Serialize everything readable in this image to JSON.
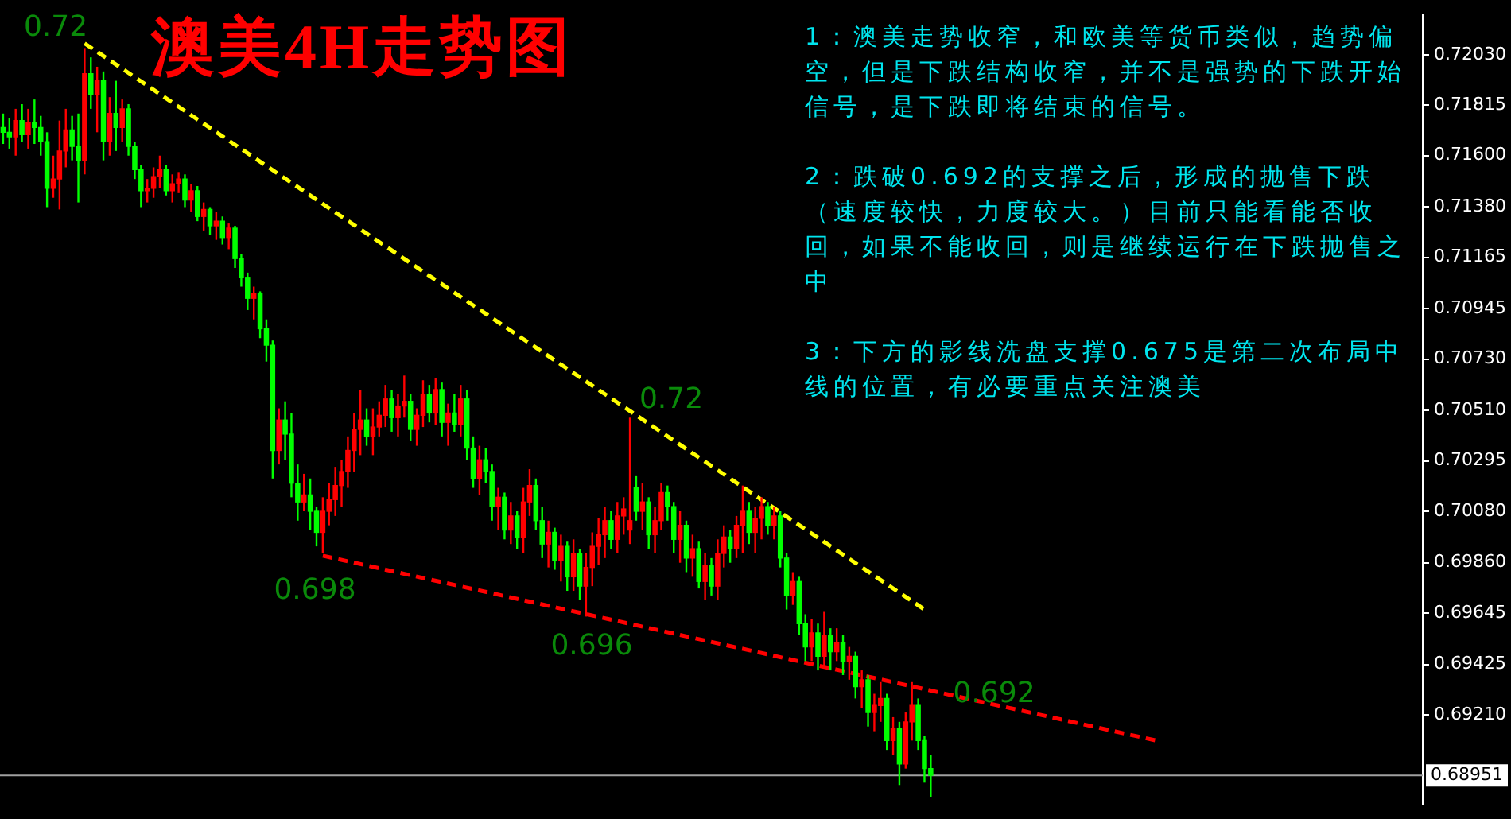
{
  "chart_data": {
    "type": "candlestick",
    "title": "澳美4H走势图",
    "categories": [
      null,
      null,
      null,
      null,
      null,
      null,
      null,
      null,
      null,
      null,
      null,
      null,
      null,
      null,
      null,
      null,
      null,
      null,
      null,
      null,
      null,
      null,
      null,
      null,
      null,
      null,
      null,
      null,
      null,
      null,
      null,
      null,
      null,
      null,
      null,
      null,
      null,
      null,
      null,
      null,
      null,
      null,
      null,
      null,
      null,
      null,
      null,
      null,
      null,
      null,
      null,
      null,
      null,
      null,
      null,
      null,
      null,
      null,
      null,
      null,
      null,
      null,
      null,
      null,
      null,
      null,
      null,
      null,
      null,
      null,
      null,
      null,
      null,
      null,
      null,
      null,
      null,
      null,
      null,
      null,
      null,
      null,
      null,
      null,
      null,
      null,
      null,
      null,
      null,
      null,
      null,
      null,
      null,
      null,
      null,
      null,
      null,
      null,
      null,
      null,
      null,
      null,
      null,
      null,
      null,
      null,
      null,
      null,
      null,
      null,
      null,
      null,
      null,
      null,
      null,
      null,
      null,
      null,
      null,
      null,
      null,
      null,
      null,
      null,
      null,
      null,
      null,
      null,
      null,
      null,
      null,
      null,
      null,
      null,
      null,
      null,
      null,
      null,
      null,
      null,
      null,
      null,
      null,
      null,
      null,
      null,
      null,
      null,
      null,
      null,
      null,
      null,
      null,
      null,
      null,
      null,
      null,
      null,
      null,
      null,
      null,
      null,
      null,
      null,
      null,
      null,
      null,
      null,
      null,
      null,
      null,
      null,
      null,
      null,
      null,
      null,
      null,
      null,
      null,
      null,
      null,
      null,
      null,
      null,
      null,
      null,
      null,
      null,
      null,
      null,
      null,
      null,
      null,
      null,
      null,
      null,
      null,
      null,
      null,
      null,
      null,
      null,
      null,
      null,
      null,
      null,
      null,
      null,
      null,
      null,
      null,
      null,
      null,
      null,
      null,
      null,
      null,
      null,
      null,
      null,
      null,
      null,
      null,
      null,
      null,
      null,
      null
    ],
    "ohlc": [
      [
        0.7172,
        0.7178,
        0.7165,
        0.717
      ],
      [
        0.717,
        0.7176,
        0.7163,
        0.7168
      ],
      [
        0.7168,
        0.718,
        0.716,
        0.7175
      ],
      [
        0.7175,
        0.7182,
        0.7166,
        0.7169
      ],
      [
        0.7169,
        0.718,
        0.7163,
        0.7174
      ],
      [
        0.7174,
        0.7184,
        0.7165,
        0.7172
      ],
      [
        0.7172,
        0.7177,
        0.716,
        0.7166
      ],
      [
        0.7166,
        0.717,
        0.7138,
        0.7146
      ],
      [
        0.7146,
        0.716,
        0.7142,
        0.715
      ],
      [
        0.715,
        0.7175,
        0.7137,
        0.7162
      ],
      [
        0.7162,
        0.718,
        0.7155,
        0.7171
      ],
      [
        0.7171,
        0.7177,
        0.7158,
        0.7164
      ],
      [
        0.7164,
        0.7178,
        0.714,
        0.7158
      ],
      [
        0.7158,
        0.7206,
        0.7152,
        0.7195
      ],
      [
        0.7195,
        0.7202,
        0.718,
        0.7186
      ],
      [
        0.7186,
        0.7198,
        0.717,
        0.7192
      ],
      [
        0.7192,
        0.7196,
        0.7158,
        0.7166
      ],
      [
        0.7166,
        0.7185,
        0.716,
        0.7178
      ],
      [
        0.7178,
        0.7192,
        0.7162,
        0.7172
      ],
      [
        0.7172,
        0.7184,
        0.7166,
        0.718
      ],
      [
        0.718,
        0.7182,
        0.716,
        0.7164
      ],
      [
        0.7164,
        0.7166,
        0.715,
        0.7154
      ],
      [
        0.7154,
        0.7156,
        0.7138,
        0.7145
      ],
      [
        0.7145,
        0.715,
        0.714,
        0.7146
      ],
      [
        0.7146,
        0.7155,
        0.7142,
        0.7151
      ],
      [
        0.7151,
        0.716,
        0.7146,
        0.7154
      ],
      [
        0.7154,
        0.7156,
        0.7143,
        0.7145
      ],
      [
        0.7145,
        0.7152,
        0.714,
        0.7148
      ],
      [
        0.7148,
        0.7153,
        0.7144,
        0.715
      ],
      [
        0.715,
        0.7152,
        0.7138,
        0.7141
      ],
      [
        0.7141,
        0.7148,
        0.7136,
        0.7145
      ],
      [
        0.7145,
        0.7147,
        0.7132,
        0.7134
      ],
      [
        0.7134,
        0.714,
        0.7128,
        0.7137
      ],
      [
        0.7137,
        0.7138,
        0.7126,
        0.713
      ],
      [
        0.713,
        0.7136,
        0.7124,
        0.7132
      ],
      [
        0.7132,
        0.7134,
        0.7122,
        0.7125
      ],
      [
        0.7125,
        0.7131,
        0.712,
        0.7129
      ],
      [
        0.7129,
        0.713,
        0.7112,
        0.7116
      ],
      [
        0.7116,
        0.7118,
        0.7104,
        0.7108
      ],
      [
        0.7108,
        0.711,
        0.7094,
        0.7099
      ],
      [
        0.7099,
        0.7104,
        0.709,
        0.7101
      ],
      [
        0.7101,
        0.7102,
        0.7082,
        0.7086
      ],
      [
        0.7086,
        0.709,
        0.7072,
        0.7079
      ],
      [
        0.7079,
        0.7081,
        0.7022,
        0.7034
      ],
      [
        0.7034,
        0.7052,
        0.7028,
        0.7047
      ],
      [
        0.7047,
        0.7055,
        0.703,
        0.7041
      ],
      [
        0.7041,
        0.705,
        0.7014,
        0.702
      ],
      [
        0.702,
        0.7028,
        0.7004,
        0.7012
      ],
      [
        0.7012,
        0.7024,
        0.7008,
        0.7015
      ],
      [
        0.7015,
        0.7022,
        0.7,
        0.7008
      ],
      [
        0.7008,
        0.701,
        0.6993,
        0.6999
      ],
      [
        0.6999,
        0.7014,
        0.699,
        0.7008
      ],
      [
        0.7008,
        0.702,
        0.7002,
        0.7013
      ],
      [
        0.7013,
        0.7027,
        0.7006,
        0.7019
      ],
      [
        0.7019,
        0.703,
        0.701,
        0.7025
      ],
      [
        0.7025,
        0.704,
        0.7018,
        0.7034
      ],
      [
        0.7034,
        0.705,
        0.7025,
        0.7043
      ],
      [
        0.7043,
        0.706,
        0.7032,
        0.7047
      ],
      [
        0.7047,
        0.7052,
        0.7036,
        0.704
      ],
      [
        0.704,
        0.7052,
        0.7032,
        0.7044
      ],
      [
        0.7044,
        0.7055,
        0.704,
        0.7049
      ],
      [
        0.7049,
        0.7062,
        0.7044,
        0.7056
      ],
      [
        0.7056,
        0.706,
        0.7042,
        0.7048
      ],
      [
        0.7048,
        0.7058,
        0.704,
        0.7053
      ],
      [
        0.7053,
        0.7066,
        0.7048,
        0.7055
      ],
      [
        0.7055,
        0.7058,
        0.7038,
        0.7043
      ],
      [
        0.7043,
        0.7052,
        0.7036,
        0.7049
      ],
      [
        0.7049,
        0.7064,
        0.7044,
        0.7058
      ],
      [
        0.7058,
        0.7062,
        0.7046,
        0.705
      ],
      [
        0.705,
        0.7065,
        0.7045,
        0.706
      ],
      [
        0.706,
        0.7063,
        0.704,
        0.7046
      ],
      [
        0.7046,
        0.7054,
        0.7036,
        0.705
      ],
      [
        0.705,
        0.7058,
        0.7042,
        0.7045
      ],
      [
        0.7045,
        0.7062,
        0.704,
        0.7056
      ],
      [
        0.7056,
        0.706,
        0.703,
        0.7035
      ],
      [
        0.7035,
        0.704,
        0.7018,
        0.7022
      ],
      [
        0.7022,
        0.7036,
        0.7015,
        0.703
      ],
      [
        0.703,
        0.7035,
        0.702,
        0.7025
      ],
      [
        0.7025,
        0.7028,
        0.7004,
        0.701
      ],
      [
        0.701,
        0.7018,
        0.7,
        0.7014
      ],
      [
        0.7014,
        0.7016,
        0.6996,
        0.7
      ],
      [
        0.7,
        0.7012,
        0.6994,
        0.7006
      ],
      [
        0.7006,
        0.7008,
        0.6992,
        0.6997
      ],
      [
        0.6997,
        0.7018,
        0.699,
        0.7012
      ],
      [
        0.7012,
        0.7026,
        0.7006,
        0.7019
      ],
      [
        0.7019,
        0.7022,
        0.7,
        0.7004
      ],
      [
        0.7004,
        0.701,
        0.6988,
        0.6994
      ],
      [
        0.6994,
        0.7004,
        0.6984,
        0.6999
      ],
      [
        0.6999,
        0.7001,
        0.6983,
        0.6987
      ],
      [
        0.6987,
        0.6998,
        0.6978,
        0.6993
      ],
      [
        0.6993,
        0.6995,
        0.6974,
        0.698
      ],
      [
        0.698,
        0.6996,
        0.6974,
        0.699
      ],
      [
        0.699,
        0.6992,
        0.697,
        0.6976
      ],
      [
        0.6976,
        0.699,
        0.6963,
        0.6984
      ],
      [
        0.6984,
        0.6999,
        0.6976,
        0.6993
      ],
      [
        0.6993,
        0.7005,
        0.6985,
        0.6998
      ],
      [
        0.6998,
        0.701,
        0.6988,
        0.7004
      ],
      [
        0.7004,
        0.7008,
        0.6992,
        0.6996
      ],
      [
        0.6996,
        0.7012,
        0.699,
        0.7006
      ],
      [
        0.7006,
        0.7014,
        0.6998,
        0.7009
      ],
      [
        0.7,
        0.7048,
        0.6994,
        0.7004
      ],
      [
        0.7018,
        0.7023,
        0.7004,
        0.7008
      ],
      [
        0.7008,
        0.702,
        0.7,
        0.7012
      ],
      [
        0.7012,
        0.7014,
        0.6992,
        0.6998
      ],
      [
        0.6998,
        0.701,
        0.699,
        0.7004
      ],
      [
        0.7004,
        0.702,
        0.7,
        0.7016
      ],
      [
        0.7016,
        0.7019,
        0.7004,
        0.701
      ],
      [
        0.701,
        0.7012,
        0.699,
        0.6996
      ],
      [
        0.6996,
        0.7008,
        0.6986,
        0.7002
      ],
      [
        0.7002,
        0.7004,
        0.6982,
        0.6988
      ],
      [
        0.6988,
        0.6998,
        0.698,
        0.6992
      ],
      [
        0.6992,
        0.6995,
        0.6975,
        0.6978
      ],
      [
        0.6978,
        0.699,
        0.697,
        0.6985
      ],
      [
        0.6985,
        0.6988,
        0.6972,
        0.6976
      ],
      [
        0.6976,
        0.6996,
        0.697,
        0.699
      ],
      [
        0.699,
        0.7002,
        0.6984,
        0.6997
      ],
      [
        0.6997,
        0.7,
        0.6986,
        0.6992
      ],
      [
        0.6992,
        0.7006,
        0.6988,
        0.7002
      ],
      [
        0.7002,
        0.7019,
        0.699,
        0.7008
      ],
      [
        0.7008,
        0.7012,
        0.6994,
        0.6999
      ],
      [
        0.6999,
        0.701,
        0.699,
        0.7005
      ],
      [
        0.7005,
        0.7014,
        0.6996,
        0.701
      ],
      [
        0.701,
        0.7012,
        0.6998,
        0.7002
      ],
      [
        0.7002,
        0.701,
        0.6996,
        0.7006
      ],
      [
        0.7006,
        0.7008,
        0.6984,
        0.6988
      ],
      [
        0.6988,
        0.699,
        0.6966,
        0.6972
      ],
      [
        0.6972,
        0.6982,
        0.6968,
        0.6978
      ],
      [
        0.6978,
        0.698,
        0.6955,
        0.696
      ],
      [
        0.696,
        0.6964,
        0.6944,
        0.695
      ],
      [
        0.695,
        0.6962,
        0.6944,
        0.6956
      ],
      [
        0.6956,
        0.696,
        0.694,
        0.6946
      ],
      [
        0.6946,
        0.6965,
        0.6942,
        0.6955
      ],
      [
        0.6955,
        0.6958,
        0.694,
        0.6948
      ],
      [
        0.6948,
        0.6958,
        0.6944,
        0.6952
      ],
      [
        0.6952,
        0.6955,
        0.6938,
        0.6944
      ],
      [
        0.6944,
        0.695,
        0.6936,
        0.6946
      ],
      [
        0.6946,
        0.6948,
        0.6928,
        0.6933
      ],
      [
        0.6933,
        0.694,
        0.6924,
        0.6936
      ],
      [
        0.6936,
        0.6938,
        0.6916,
        0.6922
      ],
      [
        0.6922,
        0.693,
        0.6914,
        0.6925
      ],
      [
        0.6925,
        0.6935,
        0.6918,
        0.6928
      ],
      [
        0.6928,
        0.693,
        0.6906,
        0.691
      ],
      [
        0.691,
        0.692,
        0.6904,
        0.6915
      ],
      [
        0.6915,
        0.6918,
        0.6891,
        0.69
      ],
      [
        0.69,
        0.6922,
        0.6898,
        0.6918
      ],
      [
        0.6918,
        0.6935,
        0.691,
        0.6925
      ],
      [
        0.6925,
        0.6928,
        0.6906,
        0.691
      ],
      [
        0.691,
        0.6912,
        0.6892,
        0.6898
      ],
      [
        0.6898,
        0.6904,
        0.6886,
        0.68951
      ],
      null,
      null,
      null,
      null,
      null,
      null,
      null,
      null,
      null,
      null,
      null,
      null,
      null,
      null,
      null,
      null,
      null,
      null,
      null,
      null,
      null,
      null,
      null,
      null,
      null,
      null,
      null,
      null,
      null,
      null,
      null,
      null,
      null,
      null,
      null,
      null,
      null,
      null,
      null,
      null,
      null,
      null,
      null,
      null,
      null,
      null,
      null,
      null,
      null,
      null,
      null,
      null,
      null,
      null,
      null,
      null,
      null,
      null,
      null,
      null,
      null,
      null,
      null,
      null,
      null,
      null,
      null,
      null,
      null,
      null,
      null,
      null,
      null,
      null,
      null,
      null,
      null,
      null
    ],
    "colors": [
      "#00ff00",
      "#00ff00",
      "#ff0000",
      "#00ff00",
      "#ff0000",
      "#00ff00",
      "#00ff00",
      "#00ff00",
      "#ff0000",
      "#ff0000",
      "#ff0000",
      "#00ff00",
      "#00ff00",
      "#ff0000",
      "#00ff00",
      "#ff0000",
      "#00ff00",
      "#ff0000",
      "#00ff00",
      "#ff0000",
      "#00ff00",
      "#00ff00",
      "#00ff00",
      "#ff0000",
      "#ff0000",
      "#ff0000",
      "#00ff00",
      "#ff0000",
      "#ff0000",
      "#00ff00",
      "#ff0000",
      "#00ff00",
      "#ff0000",
      "#00ff00",
      "#ff0000",
      "#00ff00",
      "#ff0000",
      "#00ff00",
      "#00ff00",
      "#00ff00",
      "#ff0000",
      "#00ff00",
      "#00ff00",
      "#00ff00",
      "#ff0000",
      "#00ff00",
      "#00ff00",
      "#00ff00",
      "#ff0000",
      "#00ff00",
      "#00ff00",
      "#ff0000",
      "#ff0000",
      "#ff0000",
      "#ff0000",
      "#ff0000",
      "#ff0000",
      "#ff0000",
      "#00ff00",
      "#ff0000",
      "#ff0000",
      "#ff0000",
      "#00ff00",
      "#ff0000",
      "#ff0000",
      "#00ff00",
      "#ff0000",
      "#ff0000",
      "#00ff00",
      "#ff0000",
      "#00ff00",
      "#ff0000",
      "#00ff00",
      "#ff0000",
      "#00ff00",
      "#00ff00",
      "#ff0000",
      "#00ff00",
      "#00ff00",
      "#ff0000",
      "#00ff00",
      "#ff0000",
      "#00ff00",
      "#ff0000",
      "#ff0000",
      "#00ff00",
      "#00ff00",
      "#ff0000",
      "#00ff00",
      "#ff0000",
      "#00ff00",
      "#ff0000",
      "#00ff00",
      "#ff0000",
      "#ff0000",
      "#ff0000",
      "#ff0000",
      "#00ff00",
      "#ff0000",
      "#ff0000",
      "#ff0000",
      "#00ff00",
      "#ff0000",
      "#00ff00",
      "#ff0000",
      "#ff0000",
      "#00ff00",
      "#00ff00",
      "#ff0000",
      "#00ff00",
      "#ff0000",
      "#00ff00",
      "#ff0000",
      "#00ff00",
      "#ff0000",
      "#ff0000",
      "#00ff00",
      "#ff0000",
      "#ff0000",
      "#00ff00",
      "#ff0000",
      "#ff0000",
      "#00ff00",
      "#ff0000",
      "#00ff00",
      "#00ff00",
      "#ff0000",
      "#00ff00",
      "#00ff00",
      "#ff0000",
      "#00ff00",
      "#ff0000",
      "#00ff00",
      "#ff0000",
      "#00ff00",
      "#ff0000",
      "#00ff00",
      "#ff0000",
      "#00ff00",
      "#ff0000",
      "#ff0000",
      "#00ff00",
      "#ff0000",
      "#00ff00",
      "#ff0000",
      "#ff0000",
      "#00ff00",
      "#00ff00",
      "#00ff00",
      null,
      null,
      null,
      null,
      null,
      null,
      null,
      null,
      null,
      null,
      null,
      null,
      null,
      null,
      null,
      null,
      null,
      null,
      null,
      null,
      null,
      null,
      null,
      null,
      null,
      null,
      null,
      null,
      null,
      null,
      null,
      null,
      null,
      null,
      null,
      null,
      null,
      null,
      null,
      null,
      null,
      null,
      null,
      null,
      null,
      null,
      null,
      null,
      null,
      null,
      null,
      null,
      null,
      null,
      null,
      null,
      null,
      null,
      null,
      null,
      null,
      null,
      null,
      null,
      null,
      null,
      null,
      null,
      null,
      null,
      null,
      null,
      null,
      null,
      null,
      null,
      null,
      null
    ],
    "series": [
      {
        "type": "line",
        "color": "#ffff00",
        "line_style": "dashed",
        "values": [
          null,
          null,
          null,
          null,
          null,
          null,
          null,
          null,
          null,
          null,
          null,
          null,
          null,
          0.7208,
          null,
          null,
          null,
          null,
          null,
          null,
          null,
          null,
          null,
          null,
          null,
          null,
          null,
          null,
          null,
          null,
          null,
          null,
          null,
          null,
          null,
          null,
          null,
          null,
          null,
          null,
          null,
          null,
          null,
          null,
          null,
          null,
          null,
          null,
          null,
          null,
          null,
          null,
          null,
          null,
          null,
          null,
          null,
          null,
          null,
          null,
          null,
          null,
          null,
          null,
          null,
          null,
          null,
          null,
          null,
          null,
          null,
          null,
          null,
          null,
          null,
          null,
          null,
          null,
          null,
          null,
          null,
          null,
          null,
          null,
          null,
          null,
          null,
          null,
          null,
          null,
          null,
          null,
          null,
          null,
          null,
          null,
          null,
          null,
          null,
          null,
          null,
          null,
          null,
          null,
          null,
          null,
          null,
          null,
          null,
          null,
          null,
          null,
          null,
          null,
          null,
          null,
          null,
          null,
          null,
          null,
          null,
          null,
          null,
          null,
          null,
          null,
          null,
          null,
          null,
          null,
          null,
          null,
          null,
          null,
          null,
          null,
          null,
          null,
          null,
          null,
          null,
          null,
          null,
          null,
          null,
          null,
          null,
          0.6966,
          null,
          null,
          null,
          null,
          null,
          null,
          null,
          null,
          null,
          null,
          null,
          null,
          null,
          null,
          null,
          null,
          null,
          null,
          null,
          null,
          null,
          null,
          null,
          null,
          null,
          null,
          null,
          null,
          null,
          null,
          null,
          null,
          null,
          null,
          null,
          null,
          null,
          null,
          null,
          null,
          null,
          null,
          null,
          null,
          null,
          null,
          null,
          null,
          null,
          null,
          null,
          null,
          null,
          null,
          null,
          null,
          null,
          null,
          null,
          null,
          null,
          null,
          null,
          null,
          null,
          null,
          null,
          null,
          null,
          null,
          null,
          null,
          null,
          null,
          null,
          null,
          null,
          null,
          null
        ]
      },
      {
        "type": "line",
        "color": "#ff0000",
        "line_style": "dashed",
        "values": [
          null,
          null,
          null,
          null,
          null,
          null,
          null,
          null,
          null,
          null,
          null,
          null,
          null,
          null,
          null,
          null,
          null,
          null,
          null,
          null,
          null,
          null,
          null,
          null,
          null,
          null,
          null,
          null,
          null,
          null,
          null,
          null,
          null,
          null,
          null,
          null,
          null,
          null,
          null,
          null,
          null,
          null,
          null,
          null,
          null,
          null,
          null,
          null,
          null,
          null,
          null,
          0.6989,
          null,
          null,
          null,
          null,
          null,
          null,
          null,
          null,
          null,
          null,
          null,
          null,
          null,
          null,
          null,
          null,
          null,
          null,
          null,
          null,
          null,
          null,
          null,
          null,
          null,
          null,
          null,
          null,
          null,
          null,
          null,
          null,
          null,
          null,
          null,
          null,
          null,
          null,
          null,
          null,
          null,
          null,
          null,
          null,
          null,
          null,
          null,
          null,
          null,
          null,
          null,
          null,
          null,
          null,
          null,
          null,
          null,
          null,
          null,
          null,
          null,
          null,
          null,
          null,
          null,
          null,
          null,
          null,
          null,
          null,
          null,
          null,
          null,
          null,
          null,
          null,
          null,
          null,
          null,
          null,
          null,
          null,
          null,
          null,
          null,
          null,
          null,
          null,
          null,
          null,
          null,
          null,
          null,
          null,
          null,
          null,
          null,
          null,
          null,
          null,
          null,
          null,
          null,
          null,
          null,
          null,
          null,
          null,
          null,
          null,
          null,
          null,
          null,
          null,
          null,
          null,
          null,
          null,
          null,
          null,
          null,
          null,
          null,
          null,
          null,
          null,
          null,
          null,
          null,
          null,
          null,
          null,
          0.691,
          null,
          null,
          null,
          null,
          null,
          null,
          null,
          null,
          null,
          null,
          null,
          null,
          null,
          null,
          null,
          null,
          null,
          null,
          null,
          null,
          null,
          null,
          null,
          null,
          null,
          null,
          null,
          null,
          null,
          null,
          null,
          null,
          null,
          null,
          null,
          null,
          null,
          null,
          null,
          null,
          null,
          null
        ]
      }
    ],
    "ylim": [
      0.6883,
      0.722
    ],
    "yticks": [
      {
        "value": 0.7203,
        "label": "0.72030"
      },
      0.71815,
      {
        "value": 0.716,
        "label": "0.71600"
      },
      {
        "value": 0.7138,
        "label": "0.71380"
      },
      0.71165,
      0.70945,
      {
        "value": 0.7073,
        "label": "0.70730"
      },
      {
        "value": 0.7051,
        "label": "0.70510"
      },
      0.70295,
      {
        "value": 0.7008,
        "label": "0.70080"
      },
      {
        "value": 0.6986,
        "label": "0.69860"
      },
      0.69645,
      0.69425,
      {
        "value": 0.6921,
        "label": "0.69210"
      }
    ],
    "tick_labels": "y",
    "ref_lines": [
      {
        "axis": "y",
        "value": 0.68951,
        "label": "0.68951",
        "color": "#a0a0a0"
      }
    ],
    "annotations": [
      "0.72",
      "0.698",
      "0.72",
      "0.696",
      "0.692",
      "1：澳美走势收窄，和欧美等货币类似，趋势偏空，但是下跌结构收窄，并不是强势的下跌开始信号，是下跌即将结束的信号。",
      "2：跌破0.692的支撑之后，形成的抛售下跌（速度较快，力度较大。）目前只能看能否收回，如果不能收回，则是继续运行在下跌抛售之中",
      "3：下方的影线洗盘支撑0.675是第二次布局中线的位置，有必要重点关注澳美"
    ]
  }
}
